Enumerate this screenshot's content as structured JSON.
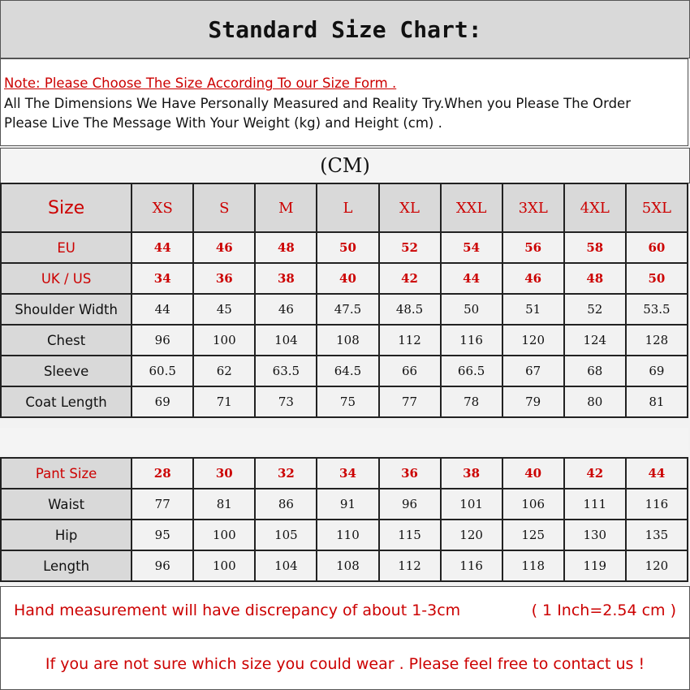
{
  "title": "Standard Size Chart:",
  "note": {
    "line1": "Note: Please Choose The Size According To our Size Form .",
    "line2": "All The Dimensions We Have Personally Measured and Reality Try.When you Please The Order",
    "line3": "Please Live The Message With Your Weight (kg) and Height (cm) ."
  },
  "unit": "(CM)",
  "colors": {
    "accent_red": "#cc0000",
    "header_gray": "#d9d9d9",
    "cell_bg": "#f2f2f2"
  },
  "top_table": {
    "header": [
      "Size",
      "XS",
      "S",
      "M",
      "L",
      "XL",
      "XXL",
      "3XL",
      "4XL",
      "5XL"
    ],
    "rows": [
      {
        "label": "EU",
        "red": true,
        "values": [
          "44",
          "46",
          "48",
          "50",
          "52",
          "54",
          "56",
          "58",
          "60"
        ]
      },
      {
        "label": "UK / US",
        "red": true,
        "values": [
          "34",
          "36",
          "38",
          "40",
          "42",
          "44",
          "46",
          "48",
          "50"
        ]
      },
      {
        "label": "Shoulder Width",
        "red": false,
        "values": [
          "44",
          "45",
          "46",
          "47.5",
          "48.5",
          "50",
          "51",
          "52",
          "53.5"
        ]
      },
      {
        "label": "Chest",
        "red": false,
        "values": [
          "96",
          "100",
          "104",
          "108",
          "112",
          "116",
          "120",
          "124",
          "128"
        ]
      },
      {
        "label": "Sleeve",
        "red": false,
        "values": [
          "60.5",
          "62",
          "63.5",
          "64.5",
          "66",
          "66.5",
          "67",
          "68",
          "69"
        ]
      },
      {
        "label": "Coat Length",
        "red": false,
        "values": [
          "69",
          "71",
          "73",
          "75",
          "77",
          "78",
          "79",
          "80",
          "81"
        ]
      }
    ]
  },
  "pant_table": {
    "rows": [
      {
        "label": "Pant Size",
        "red": true,
        "values": [
          "28",
          "30",
          "32",
          "34",
          "36",
          "38",
          "40",
          "42",
          "44"
        ]
      },
      {
        "label": "Waist",
        "red": false,
        "values": [
          "77",
          "81",
          "86",
          "91",
          "96",
          "101",
          "106",
          "111",
          "116"
        ]
      },
      {
        "label": "Hip",
        "red": false,
        "values": [
          "95",
          "100",
          "105",
          "110",
          "115",
          "120",
          "125",
          "130",
          "135"
        ]
      },
      {
        "label": "Length",
        "red": false,
        "values": [
          "96",
          "100",
          "104",
          "108",
          "112",
          "116",
          "118",
          "119",
          "120"
        ]
      }
    ]
  },
  "footer": {
    "discrepancy": "Hand measurement will have discrepancy of about 1-3cm",
    "conversion": "( 1 Inch=2.54 cm )",
    "contact": "If you are not sure which size you could wear . Please feel free to contact us !"
  }
}
